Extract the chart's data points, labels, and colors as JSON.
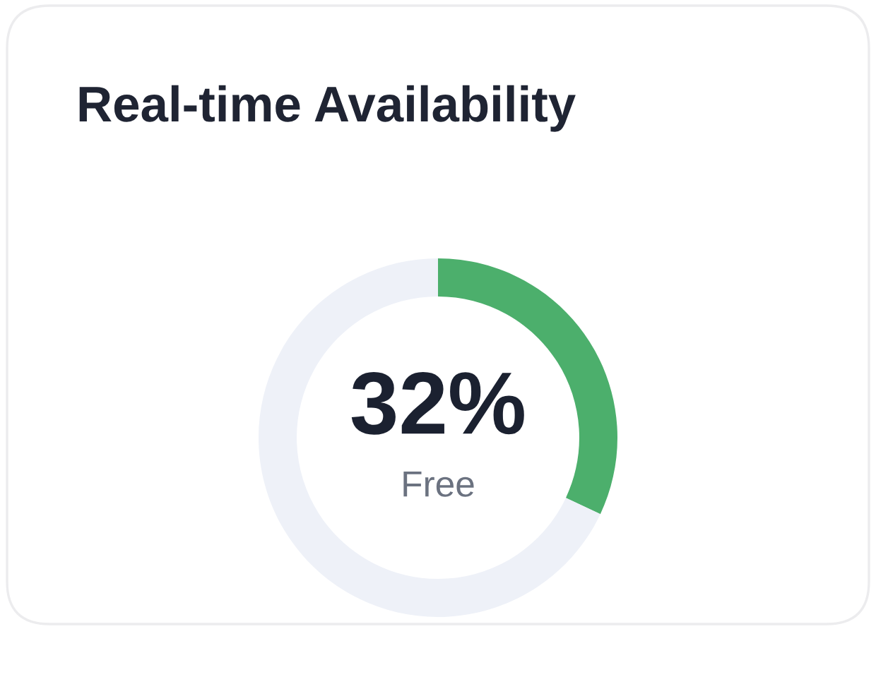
{
  "chart_data": {
    "type": "donut",
    "title": "Real-time Availability",
    "categories": [
      null,
      null
    ],
    "values": [
      32,
      68
    ],
    "colors": [
      "#4caf6c",
      "#eef1f8"
    ],
    "value_labels": [
      "32%",
      null
    ],
    "annotations": [
      "Free"
    ]
  }
}
